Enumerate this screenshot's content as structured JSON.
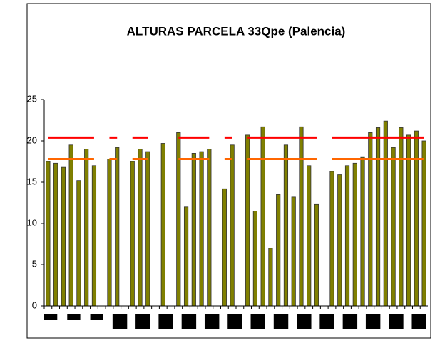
{
  "chart_data": {
    "type": "bar",
    "title": "ALTURAS PARCELA 33Qpe (Palencia)",
    "categories": [
      null,
      null,
      null,
      null,
      null,
      null,
      null,
      null,
      null,
      null,
      null,
      null,
      null,
      null,
      null,
      null,
      null,
      null,
      null,
      null,
      null,
      null,
      null,
      null,
      null,
      null,
      null,
      null,
      null,
      null,
      null,
      null,
      null,
      null,
      null,
      null,
      null,
      null,
      null,
      null,
      null,
      null,
      null,
      null,
      null,
      null,
      null,
      null,
      null,
      null
    ],
    "values": [
      17.5,
      17.3,
      16.8,
      19.5,
      15.2,
      19.0,
      17.0,
      null,
      17.8,
      19.2,
      null,
      17.5,
      19.0,
      18.7,
      null,
      19.7,
      null,
      21.0,
      12.0,
      18.5,
      18.7,
      19.0,
      null,
      14.2,
      19.5,
      null,
      20.7,
      11.5,
      21.7,
      7.0,
      13.5,
      19.5,
      13.2,
      21.7,
      17.0,
      12.3,
      null,
      16.3,
      15.9,
      17.0,
      17.3,
      18.0,
      21.0,
      21.6,
      22.4,
      19.2,
      21.6,
      20.7,
      21.2,
      20.0
    ],
    "color": "#808000",
    "series": [
      {
        "color": "#ff0000",
        "values": [
          20.4,
          20.4,
          20.4,
          20.4,
          20.4,
          20.4,
          20.4,
          null,
          20.4,
          20.4,
          null,
          20.4,
          20.4,
          20.4,
          null,
          20.4,
          null,
          20.4,
          20.4,
          20.4,
          20.4,
          20.4,
          null,
          20.4,
          20.4,
          null,
          20.4,
          20.4,
          20.4,
          20.4,
          20.4,
          20.4,
          20.4,
          20.4,
          20.4,
          20.4,
          null,
          20.4,
          20.4,
          20.4,
          20.4,
          20.4,
          20.4,
          20.4,
          20.4,
          20.4,
          20.4,
          20.4,
          20.4,
          20.4
        ]
      },
      {
        "color": "#ff6600",
        "values": [
          17.8,
          17.8,
          17.8,
          17.8,
          17.8,
          17.8,
          17.8,
          null,
          17.8,
          17.8,
          null,
          17.8,
          17.8,
          17.8,
          null,
          17.8,
          null,
          17.8,
          17.8,
          17.8,
          17.8,
          17.8,
          null,
          17.8,
          17.8,
          null,
          17.8,
          17.8,
          17.8,
          17.8,
          17.8,
          17.8,
          17.8,
          17.8,
          17.8,
          17.8,
          null,
          17.8,
          17.8,
          17.8,
          17.8,
          17.8,
          17.8,
          17.8,
          17.8,
          17.8,
          17.8,
          17.8,
          17.8,
          17.8
        ]
      }
    ],
    "ylim": [
      0,
      25
    ],
    "yticks": [
      0,
      5,
      10,
      15,
      20,
      25
    ],
    "grid": false
  }
}
